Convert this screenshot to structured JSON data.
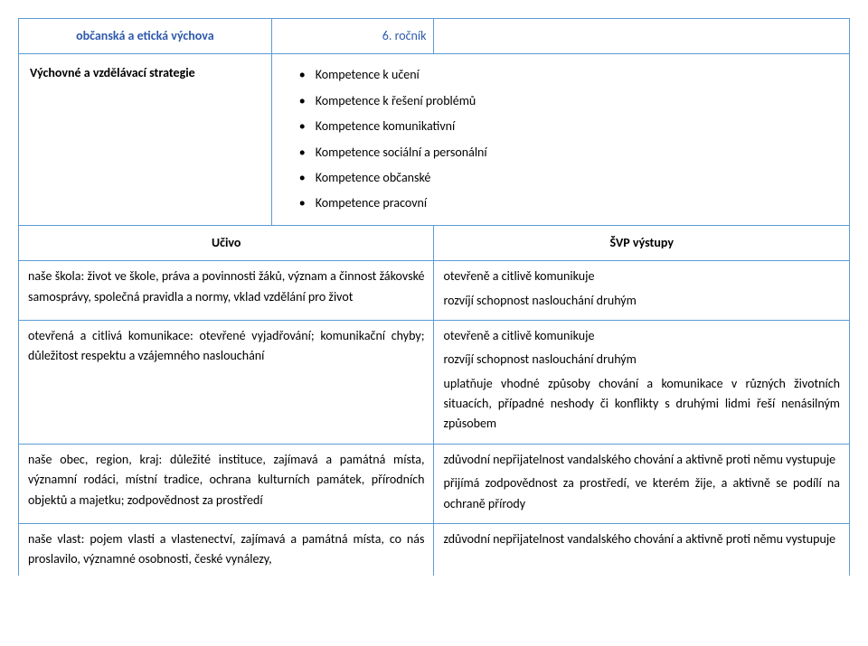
{
  "header": {
    "subject": "občanská a etická výchova",
    "grade": "6. ročník"
  },
  "strategies": {
    "label": "Výchovné a vzdělávací strategie",
    "items": [
      "Kompetence k učení",
      "Kompetence k řešení problémů",
      "Kompetence komunikativní",
      "Kompetence sociální a personální",
      "Kompetence občanské",
      "Kompetence pracovní"
    ]
  },
  "columns": {
    "left": "Učivo",
    "right": "ŠVP výstupy"
  },
  "rows": [
    {
      "left": "naše škola: život ve škole, práva a povinnosti žáků, význam a činnost žákovské samosprávy, společná pravidla a normy, vklad vzdělání pro život",
      "right": [
        "otevřeně a citlivě komunikuje",
        "rozvíjí schopnost naslouchání druhým"
      ]
    },
    {
      "left": "otevřená a citlivá komunikace: otevřené vyjadřování; komunikační chyby; důležitost respektu a vzájemného naslouchání",
      "right": [
        "otevřeně a citlivě komunikuje",
        "rozvíjí schopnost naslouchání druhým",
        "uplatňuje vhodné způsoby chování a komunikace v různých životních situacích, případné neshody či konflikty s druhými lidmi řeší nenásilným způsobem"
      ]
    },
    {
      "left": "naše obec, region, kraj: důležité instituce, zajímavá a památná místa, významní rodáci, místní tradice, ochrana kulturních památek, přírodních objektů a majetku; zodpovědnost za prostředí",
      "right": [
        "zdůvodní nepřijatelnost vandalského chování a aktivně proti němu vystupuje",
        "přijímá zodpovědnost za prostředí, ve kterém žije, a aktivně se podílí na ochraně přírody"
      ]
    },
    {
      "left": "naše vlast: pojem vlasti a vlastenectví, zajímavá a památná místa, co nás proslavilo, významné osobnosti, české vynálezy,",
      "right": [
        "zdůvodní nepřijatelnost vandalského chování a aktivně proti němu vystupuje"
      ]
    }
  ]
}
